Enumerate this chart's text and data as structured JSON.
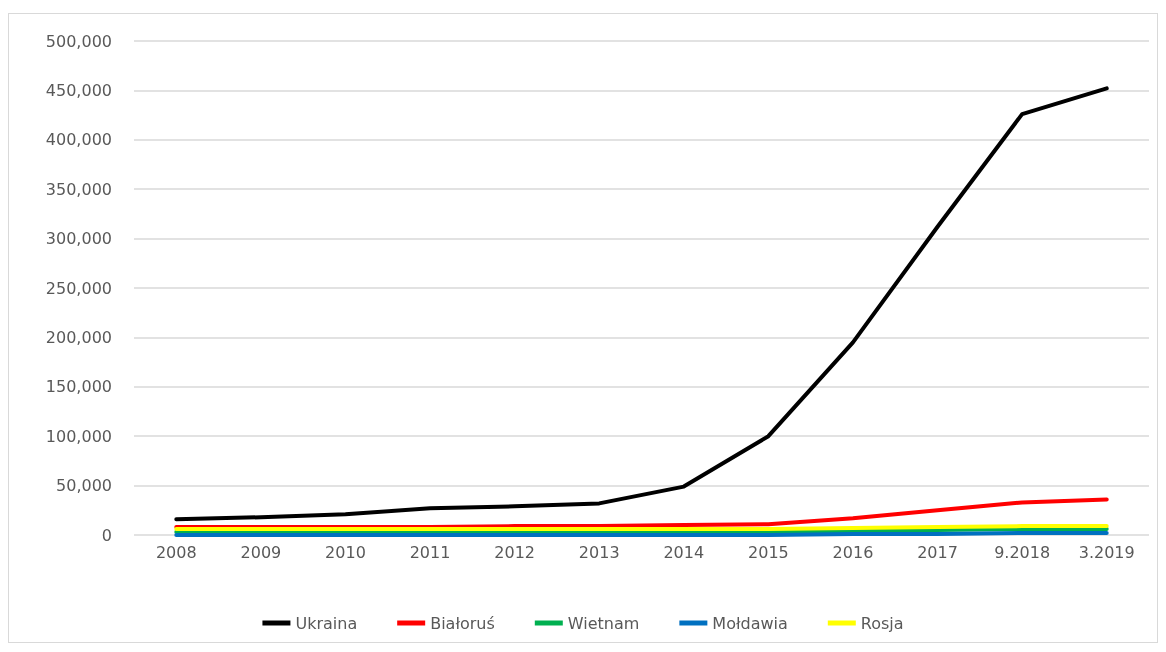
{
  "chart_data": {
    "type": "line",
    "categories": [
      "2008",
      "2009",
      "2010",
      "2011",
      "2012",
      "2013",
      "2014",
      "2015",
      "2016",
      "2017",
      "9.2018",
      "3.2019"
    ],
    "series": [
      {
        "name": "Ukraina",
        "color": "#000000",
        "values": [
          16000,
          18000,
          21000,
          27000,
          29000,
          32000,
          49000,
          100000,
          195000,
          312000,
          426000,
          452000
        ]
      },
      {
        "name": "Białoruś",
        "color": "#ff0000",
        "values": [
          8000,
          8000,
          8000,
          8000,
          9000,
          9000,
          10000,
          11000,
          17000,
          25000,
          33000,
          36000
        ]
      },
      {
        "name": "Wietnam",
        "color": "#00b050",
        "values": [
          3000,
          3000,
          3000,
          3000,
          3000,
          3000,
          3000,
          3000,
          4000,
          5000,
          6000,
          6000
        ]
      },
      {
        "name": "Mołdawia",
        "color": "#0070c0",
        "values": [
          0,
          0,
          0,
          0,
          0,
          0,
          0,
          0,
          1000,
          1000,
          2000,
          2000
        ]
      },
      {
        "name": "Rosja",
        "color": "#ffff00",
        "values": [
          6000,
          6000,
          6000,
          6000,
          6000,
          6000,
          6000,
          6000,
          7000,
          8000,
          9000,
          9000
        ]
      }
    ],
    "ylim": [
      0,
      500000
    ],
    "yticks": [
      {
        "value": 0,
        "label": "0"
      },
      {
        "value": 50000,
        "label": "50,000"
      },
      {
        "value": 100000,
        "label": "100,000"
      },
      {
        "value": 150000,
        "label": "150,000"
      },
      {
        "value": 200000,
        "label": "200,000"
      },
      {
        "value": 250000,
        "label": "250,000"
      },
      {
        "value": 300000,
        "label": "300,000"
      },
      {
        "value": 350000,
        "label": "350,000"
      },
      {
        "value": 400000,
        "label": "400,000"
      },
      {
        "value": 450000,
        "label": "450,000"
      },
      {
        "value": 500000,
        "label": "500,000"
      }
    ],
    "grid": "y",
    "legend": "bottom",
    "marker": "none",
    "line_style": "solid"
  }
}
